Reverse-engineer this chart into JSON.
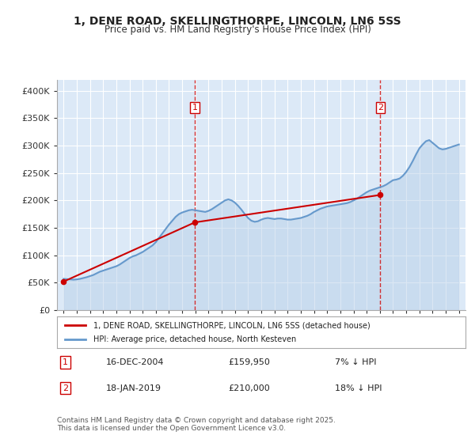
{
  "title": "1, DENE ROAD, SKELLINGTHORPE, LINCOLN, LN6 5SS",
  "subtitle": "Price paid vs. HM Land Registry's House Price Index (HPI)",
  "background_color": "#ffffff",
  "plot_bg_color": "#dce9f7",
  "grid_color": "#ffffff",
  "ylabel": "",
  "ylim": [
    0,
    420000
  ],
  "yticks": [
    0,
    50000,
    100000,
    150000,
    200000,
    250000,
    300000,
    350000,
    400000
  ],
  "ytick_labels": [
    "£0",
    "£50K",
    "£100K",
    "£150K",
    "£200K",
    "£250K",
    "£300K",
    "£350K",
    "£400K"
  ],
  "red_line_label": "1, DENE ROAD, SKELLINGTHORPE, LINCOLN, LN6 5SS (detached house)",
  "blue_line_label": "HPI: Average price, detached house, North Kesteven",
  "footnote": "Contains HM Land Registry data © Crown copyright and database right 2025.\nThis data is licensed under the Open Government Licence v3.0.",
  "marker1_date": "16-DEC-2004",
  "marker1_price": "£159,950",
  "marker1_hpi": "7% ↓ HPI",
  "marker2_date": "18-JAN-2019",
  "marker2_price": "£210,000",
  "marker2_hpi": "18% ↓ HPI",
  "vline1_x": 2004.96,
  "vline2_x": 2019.04,
  "red_color": "#cc0000",
  "blue_color": "#6699cc",
  "blue_fill_color": "#b8d0e8",
  "hpi_dates": [
    1995.0,
    1995.25,
    1995.5,
    1995.75,
    1996.0,
    1996.25,
    1996.5,
    1996.75,
    1997.0,
    1997.25,
    1997.5,
    1997.75,
    1998.0,
    1998.25,
    1998.5,
    1998.75,
    1999.0,
    1999.25,
    1999.5,
    1999.75,
    2000.0,
    2000.25,
    2000.5,
    2000.75,
    2001.0,
    2001.25,
    2001.5,
    2001.75,
    2002.0,
    2002.25,
    2002.5,
    2002.75,
    2003.0,
    2003.25,
    2003.5,
    2003.75,
    2004.0,
    2004.25,
    2004.5,
    2004.75,
    2005.0,
    2005.25,
    2005.5,
    2005.75,
    2006.0,
    2006.25,
    2006.5,
    2006.75,
    2007.0,
    2007.25,
    2007.5,
    2007.75,
    2008.0,
    2008.25,
    2008.5,
    2008.75,
    2009.0,
    2009.25,
    2009.5,
    2009.75,
    2010.0,
    2010.25,
    2010.5,
    2010.75,
    2011.0,
    2011.25,
    2011.5,
    2011.75,
    2012.0,
    2012.25,
    2012.5,
    2012.75,
    2013.0,
    2013.25,
    2013.5,
    2013.75,
    2014.0,
    2014.25,
    2014.5,
    2014.75,
    2015.0,
    2015.25,
    2015.5,
    2015.75,
    2016.0,
    2016.25,
    2016.5,
    2016.75,
    2017.0,
    2017.25,
    2017.5,
    2017.75,
    2018.0,
    2018.25,
    2018.5,
    2018.75,
    2019.0,
    2019.25,
    2019.5,
    2019.75,
    2020.0,
    2020.25,
    2020.5,
    2020.75,
    2021.0,
    2021.25,
    2021.5,
    2021.75,
    2022.0,
    2022.25,
    2022.5,
    2022.75,
    2023.0,
    2023.25,
    2023.5,
    2023.75,
    2024.0,
    2024.25,
    2024.5,
    2024.75,
    2025.0
  ],
  "hpi_values": [
    57000,
    56500,
    56000,
    55500,
    56000,
    57000,
    58500,
    60000,
    62000,
    64000,
    67000,
    70000,
    72000,
    74000,
    76000,
    78000,
    80000,
    83000,
    87000,
    91000,
    95000,
    98000,
    100000,
    103000,
    106000,
    110000,
    114000,
    118000,
    124000,
    132000,
    140000,
    148000,
    156000,
    163000,
    170000,
    175000,
    178000,
    180000,
    182000,
    183000,
    182000,
    181000,
    180000,
    179000,
    181000,
    184000,
    188000,
    192000,
    196000,
    200000,
    202000,
    200000,
    196000,
    190000,
    183000,
    175000,
    168000,
    163000,
    161000,
    162000,
    165000,
    167000,
    168000,
    167000,
    166000,
    167000,
    167000,
    166000,
    165000,
    165000,
    166000,
    167000,
    168000,
    170000,
    172000,
    175000,
    179000,
    182000,
    185000,
    187000,
    189000,
    190000,
    191000,
    192000,
    193000,
    194000,
    195000,
    197000,
    200000,
    203000,
    207000,
    211000,
    215000,
    218000,
    220000,
    222000,
    224000,
    226000,
    229000,
    233000,
    237000,
    238000,
    240000,
    245000,
    252000,
    261000,
    272000,
    284000,
    295000,
    302000,
    308000,
    310000,
    305000,
    300000,
    295000,
    293000,
    294000,
    296000,
    298000,
    300000,
    302000
  ],
  "sold_dates": [
    1995.0,
    2004.96,
    2019.04
  ],
  "sold_prices": [
    52000,
    159950,
    210000
  ],
  "xmin": 1994.5,
  "xmax": 2025.5,
  "xticks": [
    1995,
    1996,
    1997,
    1998,
    1999,
    2000,
    2001,
    2002,
    2003,
    2004,
    2005,
    2006,
    2007,
    2008,
    2009,
    2010,
    2011,
    2012,
    2013,
    2014,
    2015,
    2016,
    2017,
    2018,
    2019,
    2020,
    2021,
    2022,
    2023,
    2024,
    2025
  ]
}
